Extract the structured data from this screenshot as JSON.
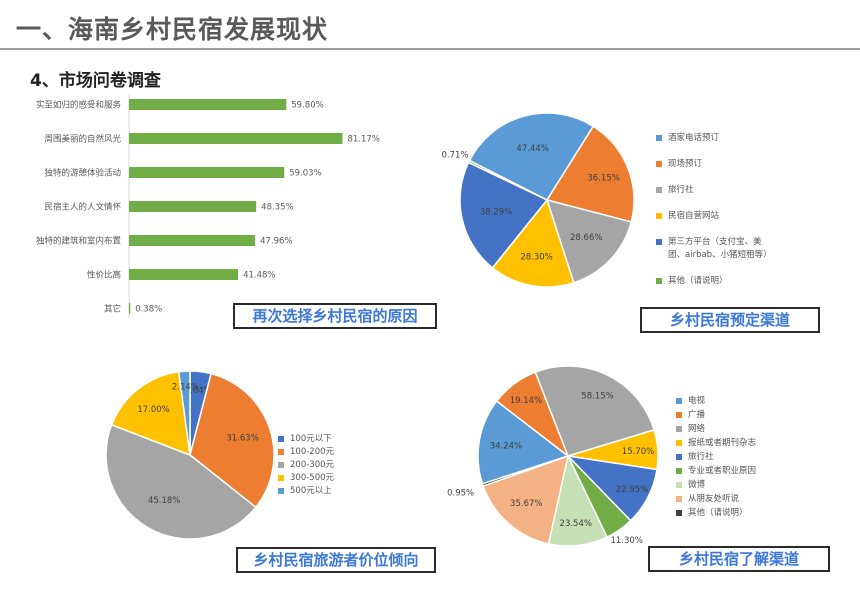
{
  "page": {
    "title": "一、海南乡村民宿发展现状",
    "section": "4、市场问卷调查"
  },
  "chart_data": [
    {
      "type": "bar",
      "orientation": "horizontal",
      "caption": "再次选择乡村民宿的原因",
      "categories": [
        "实至如归的感受和服务",
        "周围美丽的自然风光",
        "独特的游憩体验活动",
        "民宿主人的人文情怀",
        "独特的建筑和室内布置",
        "性价比高",
        "其它"
      ],
      "values": [
        59.8,
        81.17,
        59.03,
        48.35,
        47.96,
        41.48,
        0.38
      ],
      "value_labels": [
        "59.80%",
        "81.17%",
        "59.03%",
        "48.35%",
        "47.96%",
        "41.48%",
        "0.38%"
      ],
      "color": "#70ad47",
      "xlim": [
        0,
        100
      ]
    },
    {
      "type": "pie",
      "caption": "乡村民宿预定渠道",
      "labels": [
        "酒家电话预订",
        "现场预订",
        "旅行社",
        "民宿自营网站",
        "第三方平台（支付宝、美团、airbab、小猪短租等）",
        "其他（请说明）"
      ],
      "legend_lines": [
        [
          "酒家电话预订"
        ],
        [
          "现场预订"
        ],
        [
          "旅行社"
        ],
        [
          "民宿自营网站"
        ],
        [
          "第三方平台（支付宝、美",
          "团、airbab、小猪短租等）"
        ],
        [
          "其他（请说明）"
        ]
      ],
      "values": [
        47.44,
        36.15,
        28.66,
        28.3,
        38.29,
        0.71
      ],
      "value_labels": [
        "47.44%",
        "36.15%",
        "28.66%",
        "28.30%",
        "38.29%",
        "0.71%"
      ],
      "colors": [
        "#5b9bd5",
        "#ed7d31",
        "#a5a5a5",
        "#ffc000",
        "#4472c4",
        "#70ad47"
      ],
      "legend_position": "right"
    },
    {
      "type": "pie",
      "caption": "乡村民宿旅游者价位倾向",
      "labels": [
        "100元以下",
        "100-200元",
        "200-300元",
        "300-500元",
        "500元以上"
      ],
      "values": [
        4.04,
        31.63,
        45.18,
        17.0,
        2.14
      ],
      "value_labels": [
        "4.04%",
        "31.63%",
        "45.18%",
        "17.00%",
        "2.14%"
      ],
      "colors": [
        "#4472c4",
        "#ed7d31",
        "#a5a5a5",
        "#ffc000",
        "#5b9bd5"
      ],
      "legend_position": "right"
    },
    {
      "type": "pie",
      "caption": "乡村民宿了解渠道",
      "labels": [
        "电视",
        "广播",
        "网络",
        "报纸或者期刊杂志",
        "旅行社",
        "专业或者职业原因",
        "微博",
        "从朋友处听说",
        "其他（请说明）"
      ],
      "values": [
        34.24,
        19.14,
        58.15,
        15.7,
        22.95,
        11.3,
        23.54,
        35.67,
        0.95
      ],
      "value_labels": [
        "34.24%",
        "19.14%",
        "58.15%",
        "15.70%",
        "22.95%",
        "11.30%",
        "23.54%",
        "35.67%",
        "0.95%"
      ],
      "colors": [
        "#5b9bd5",
        "#ed7d31",
        "#a5a5a5",
        "#ffc000",
        "#4472c4",
        "#70ad47",
        "#c5e0b4",
        "#f4b183",
        "#404040"
      ],
      "legend_position": "right"
    }
  ]
}
